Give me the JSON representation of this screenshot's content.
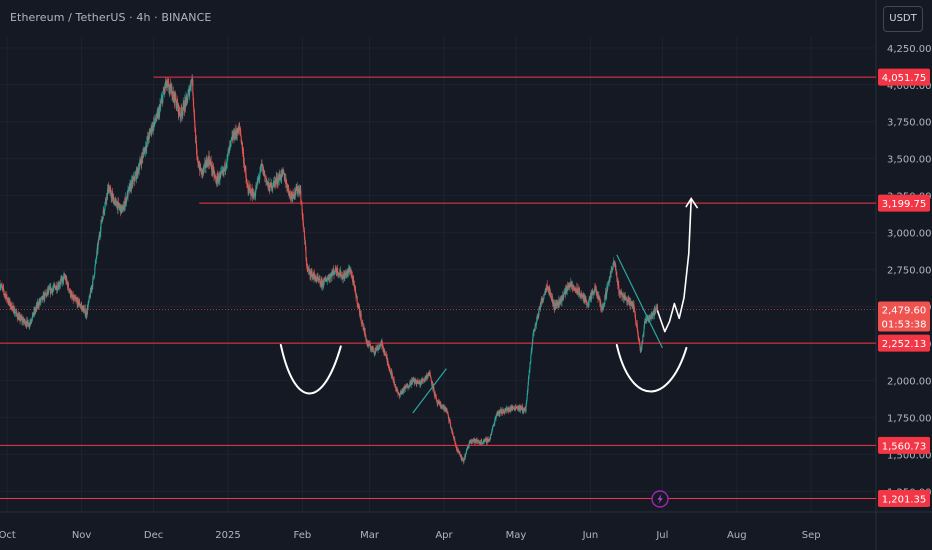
{
  "header": {
    "title": "Ethereum / TetherUS · 4h · BINANCE",
    "currency_button": "USDT"
  },
  "colors": {
    "background": "#151924",
    "up": "#26a69a",
    "down": "#ef5350",
    "level_line": "#f23645",
    "grid": "#1e222d",
    "drawing": "#ffffff",
    "trendline": "#2aa6a0"
  },
  "icons": {
    "event_marker": "lightning-icon"
  },
  "chart_data": {
    "type": "candlestick",
    "symbol": "ETHUSDT",
    "timeframe": "4h",
    "exchange": "BINANCE",
    "xlim": [
      "2024-09-28",
      "2025-09-28"
    ],
    "ylim": [
      1110,
      4330
    ],
    "x_ticks": [
      {
        "date": "2024-10-01",
        "label": "Oct"
      },
      {
        "date": "2024-11-01",
        "label": "Nov"
      },
      {
        "date": "2024-12-01",
        "label": "Dec"
      },
      {
        "date": "2025-01-01",
        "label": "2025"
      },
      {
        "date": "2025-02-01",
        "label": "Feb"
      },
      {
        "date": "2025-03-01",
        "label": "Mar"
      },
      {
        "date": "2025-04-01",
        "label": "Apr"
      },
      {
        "date": "2025-05-01",
        "label": "May"
      },
      {
        "date": "2025-06-01",
        "label": "Jun"
      },
      {
        "date": "2025-07-01",
        "label": "Jul"
      },
      {
        "date": "2025-08-01",
        "label": "Aug"
      },
      {
        "date": "2025-09-01",
        "label": "Sep"
      }
    ],
    "y_ticks": [
      {
        "value": 1250,
        "label": "1,250.00"
      },
      {
        "value": 1500,
        "label": "1,500.00"
      },
      {
        "value": 1750,
        "label": "1,750.00"
      },
      {
        "value": 2000,
        "label": "2,000.00"
      },
      {
        "value": 2250,
        "label": "2,250.00"
      },
      {
        "value": 2500,
        "label": "2,500.00"
      },
      {
        "value": 2750,
        "label": "2,750.00"
      },
      {
        "value": 3000,
        "label": "3,000.00"
      },
      {
        "value": 3250,
        "label": "3,250.00"
      },
      {
        "value": 3500,
        "label": "3,500.00"
      },
      {
        "value": 3750,
        "label": "3,750.00"
      },
      {
        "value": 4000,
        "label": "4,000.00"
      },
      {
        "value": 4250,
        "label": "4,250.00"
      }
    ],
    "horizontal_levels": [
      {
        "value": 4051.75,
        "label": "4,051.75",
        "start": "2024-12-01"
      },
      {
        "value": 3199.75,
        "label": "3,199.75",
        "start": "2024-12-20"
      },
      {
        "value": 2252.13,
        "label": "2,252.13",
        "start": "2024-09-28"
      },
      {
        "value": 1560.73,
        "label": "1,560.73",
        "start": "2024-09-28"
      },
      {
        "value": 1201.35,
        "label": "1,201.35",
        "start": "2024-09-28"
      }
    ],
    "last_price": {
      "value": 2479.6,
      "label": "2,479.60",
      "countdown": "01:53:38"
    },
    "price_path": [
      [
        "2024-09-28",
        2650
      ],
      [
        "2024-10-02",
        2520
      ],
      [
        "2024-10-06",
        2420
      ],
      [
        "2024-10-10",
        2380
      ],
      [
        "2024-10-14",
        2520
      ],
      [
        "2024-10-18",
        2600
      ],
      [
        "2024-10-22",
        2640
      ],
      [
        "2024-10-25",
        2700
      ],
      [
        "2024-10-28",
        2560
      ],
      [
        "2024-10-31",
        2520
      ],
      [
        "2024-11-03",
        2450
      ],
      [
        "2024-11-06",
        2700
      ],
      [
        "2024-11-09",
        3050
      ],
      [
        "2024-11-12",
        3300
      ],
      [
        "2024-11-15",
        3200
      ],
      [
        "2024-11-18",
        3150
      ],
      [
        "2024-11-21",
        3300
      ],
      [
        "2024-11-24",
        3400
      ],
      [
        "2024-11-27",
        3550
      ],
      [
        "2024-11-30",
        3700
      ],
      [
        "2024-12-03",
        3800
      ],
      [
        "2024-12-06",
        4000
      ],
      [
        "2024-12-09",
        3950
      ],
      [
        "2024-12-12",
        3800
      ],
      [
        "2024-12-15",
        3900
      ],
      [
        "2024-12-17",
        4050
      ],
      [
        "2024-12-19",
        3500
      ],
      [
        "2024-12-21",
        3400
      ],
      [
        "2024-12-24",
        3500
      ],
      [
        "2024-12-27",
        3350
      ],
      [
        "2024-12-30",
        3400
      ],
      [
        "2025-01-03",
        3650
      ],
      [
        "2025-01-06",
        3700
      ],
      [
        "2025-01-09",
        3300
      ],
      [
        "2025-01-12",
        3250
      ],
      [
        "2025-01-15",
        3450
      ],
      [
        "2025-01-18",
        3300
      ],
      [
        "2025-01-21",
        3350
      ],
      [
        "2025-01-24",
        3400
      ],
      [
        "2025-01-27",
        3250
      ],
      [
        "2025-01-31",
        3300
      ],
      [
        "2025-02-03",
        2750
      ],
      [
        "2025-02-06",
        2700
      ],
      [
        "2025-02-09",
        2650
      ],
      [
        "2025-02-12",
        2700
      ],
      [
        "2025-02-15",
        2750
      ],
      [
        "2025-02-18",
        2700
      ],
      [
        "2025-02-21",
        2750
      ],
      [
        "2025-02-25",
        2450
      ],
      [
        "2025-02-28",
        2250
      ],
      [
        "2025-03-03",
        2200
      ],
      [
        "2025-03-06",
        2250
      ],
      [
        "2025-03-10",
        2050
      ],
      [
        "2025-03-13",
        1900
      ],
      [
        "2025-03-16",
        1950
      ],
      [
        "2025-03-19",
        2000
      ],
      [
        "2025-03-22",
        1980
      ],
      [
        "2025-03-26",
        2050
      ],
      [
        "2025-03-29",
        1850
      ],
      [
        "2025-04-02",
        1800
      ],
      [
        "2025-04-06",
        1550
      ],
      [
        "2025-04-09",
        1450
      ],
      [
        "2025-04-12",
        1600
      ],
      [
        "2025-04-16",
        1580
      ],
      [
        "2025-04-20",
        1600
      ],
      [
        "2025-04-23",
        1780
      ],
      [
        "2025-04-27",
        1800
      ],
      [
        "2025-05-01",
        1820
      ],
      [
        "2025-05-05",
        1800
      ],
      [
        "2025-05-08",
        2300
      ],
      [
        "2025-05-11",
        2500
      ],
      [
        "2025-05-14",
        2650
      ],
      [
        "2025-05-17",
        2500
      ],
      [
        "2025-05-20",
        2550
      ],
      [
        "2025-05-23",
        2650
      ],
      [
        "2025-05-27",
        2600
      ],
      [
        "2025-05-31",
        2520
      ],
      [
        "2025-06-03",
        2620
      ],
      [
        "2025-06-06",
        2480
      ],
      [
        "2025-06-09",
        2700
      ],
      [
        "2025-06-11",
        2800
      ],
      [
        "2025-06-13",
        2600
      ],
      [
        "2025-06-16",
        2550
      ],
      [
        "2025-06-19",
        2500
      ],
      [
        "2025-06-21",
        2300
      ],
      [
        "2025-06-22",
        2200
      ],
      [
        "2025-06-24",
        2420
      ],
      [
        "2025-06-26",
        2430
      ],
      [
        "2025-06-28",
        2470
      ],
      [
        "2025-06-29",
        2479.6
      ]
    ],
    "annotations": {
      "handdrawn_curves": [
        {
          "kind": "rounded-bottom",
          "points": [
            [
              "2025-01-23",
              2240
            ],
            [
              "2025-02-04",
              1980
            ],
            [
              "2025-02-17",
              2230
            ]
          ]
        },
        {
          "kind": "rounded-bottom",
          "points": [
            [
              "2025-06-12",
              2240
            ],
            [
              "2025-06-27",
              2000
            ],
            [
              "2025-07-11",
              2220
            ]
          ]
        }
      ],
      "projection_path": [
        [
          "2025-06-29",
          2470
        ],
        [
          "2025-07-02",
          2330
        ],
        [
          "2025-07-04",
          2400
        ],
        [
          "2025-07-06",
          2520
        ],
        [
          "2025-07-08",
          2420
        ],
        [
          "2025-07-10",
          2560
        ],
        [
          "2025-07-12",
          2860
        ],
        [
          "2025-07-13",
          3230
        ]
      ],
      "trendlines": [
        {
          "from": [
            "2025-03-19",
            1780
          ],
          "to": [
            "2025-04-02",
            2080
          ]
        },
        {
          "from": [
            "2025-06-12",
            2850
          ],
          "to": [
            "2025-07-01",
            2220
          ]
        }
      ],
      "event_marker_date": "2025-06-30"
    }
  }
}
